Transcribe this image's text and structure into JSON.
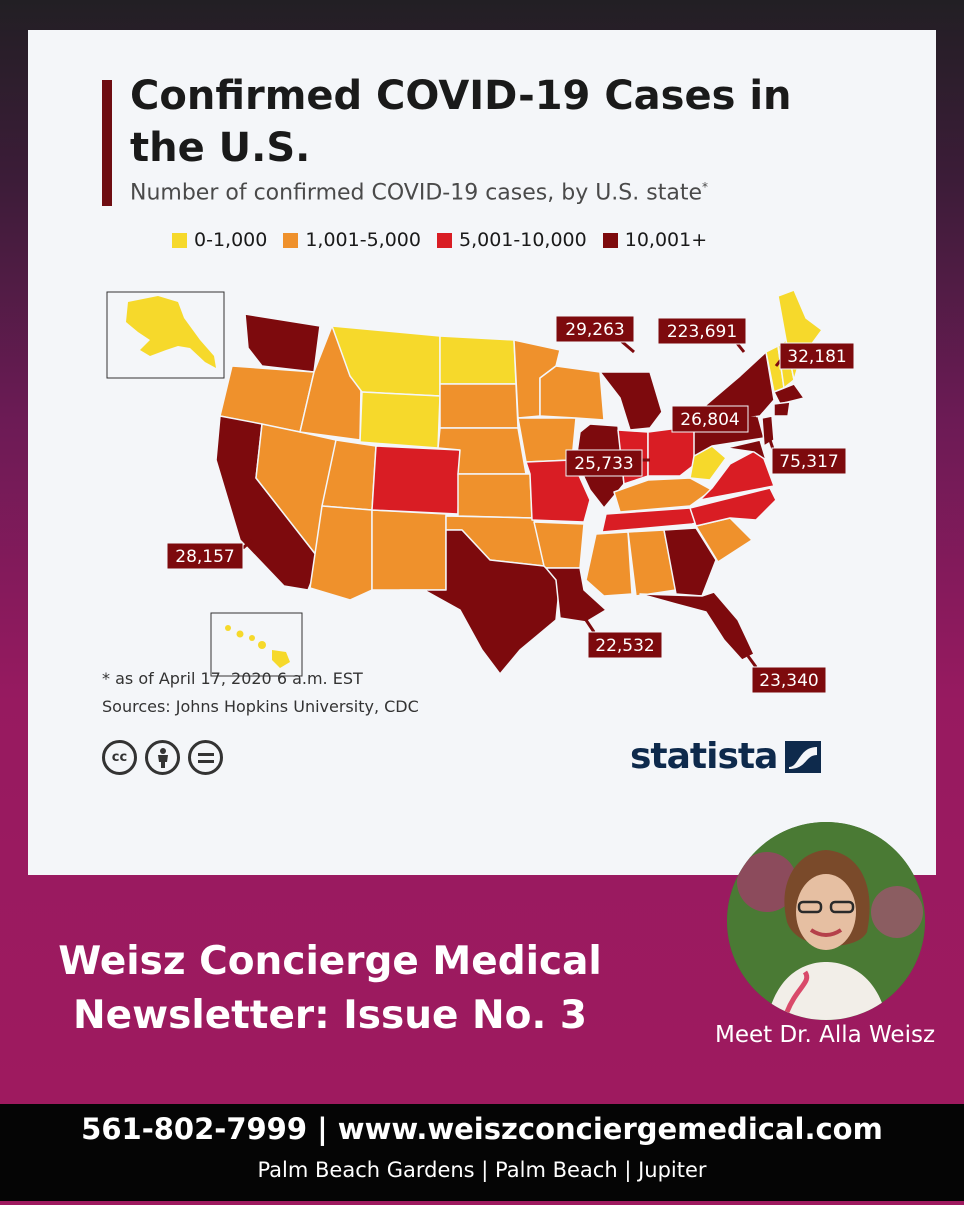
{
  "chart_data": {
    "type": "choropleth",
    "title": "Confirmed COVID-19 Cases in the U.S.",
    "subtitle": "Number of confirmed COVID-19 cases, by U.S. state",
    "subtitle_mark": "*",
    "legend": [
      {
        "label": "0-1,000",
        "color": "#f6d92b"
      },
      {
        "label": "1,001-5,000",
        "color": "#ef912c"
      },
      {
        "label": "5,001-10,000",
        "color": "#d91d24"
      },
      {
        "label": "10,001+",
        "color": "#7d0a0d"
      }
    ],
    "callouts": [
      {
        "state": "Washington",
        "value": "29,263"
      },
      {
        "state": "New York",
        "value": "223,691"
      },
      {
        "state": "Massachusetts",
        "value": "32,181"
      },
      {
        "state": "Pennsylvania",
        "value": "26,804"
      },
      {
        "state": "Illinois",
        "value": "25,733"
      },
      {
        "state": "New Jersey",
        "value": "75,317"
      },
      {
        "state": "California",
        "value": "28,157"
      },
      {
        "state": "Louisiana",
        "value": "22,532"
      },
      {
        "state": "Florida",
        "value": "23,340"
      }
    ],
    "footnote": "* as of April 17, 2020 6 a.m. EST",
    "sources": "Sources: Johns Hopkins University, CDC"
  },
  "branding": {
    "statista": "statista",
    "cc_labels": [
      "cc",
      "i",
      "="
    ]
  },
  "newsletter": {
    "line1": "Weisz Concierge Medical",
    "line2": "Newsletter: Issue No. 3",
    "meet": "Meet Dr. Alla Weisz"
  },
  "footer": {
    "contact": "561-802-7999 | www.weiszconciergemedical.com",
    "locations": "Palm Beach Gardens | Palm Beach | Jupiter"
  },
  "icons": {
    "cc": "creative-commons-icon",
    "by": "attribution-person-icon",
    "nd": "no-derivatives-icon",
    "logo": "statista-logo-icon"
  }
}
